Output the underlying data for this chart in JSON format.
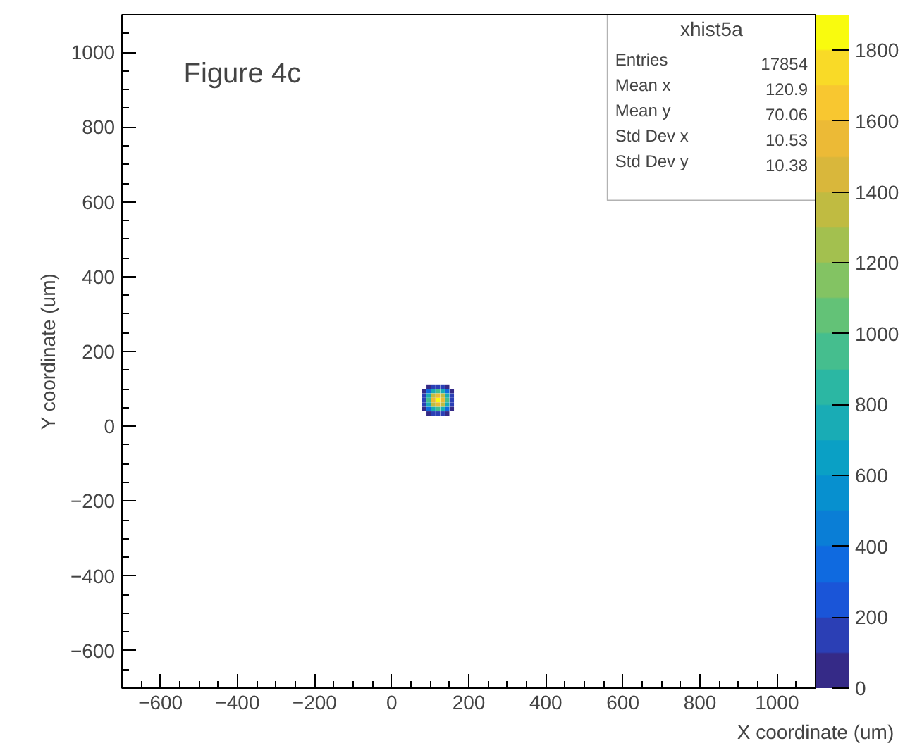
{
  "chart_data": {
    "type": "scatter",
    "marker": "square",
    "xlabel": "X coordinate (um)",
    "ylabel": "Y coordinate (um)",
    "annotations": [
      "Figure 4c",
      "xhist5a",
      "Entries 17854",
      "Mean x 120.9",
      "Mean y 70.06",
      "Std Dev x 10.53",
      "Std Dev y 10.38"
    ],
    "x": [
      96,
      108,
      120,
      132,
      144,
      84,
      96,
      108,
      120,
      132,
      144,
      156,
      84,
      96,
      108,
      120,
      132,
      144,
      156,
      84,
      96,
      108,
      120,
      132,
      144,
      156,
      84,
      96,
      108,
      120,
      132,
      144,
      156,
      84,
      96,
      108,
      120,
      132,
      144,
      156,
      96,
      108,
      120,
      132,
      144
    ],
    "values": [
      106,
      106,
      106,
      106,
      106,
      94,
      94,
      94,
      94,
      94,
      94,
      94,
      82,
      82,
      82,
      82,
      82,
      82,
      82,
      70,
      70,
      70,
      70,
      70,
      70,
      70,
      58,
      58,
      58,
      58,
      58,
      58,
      58,
      46,
      46,
      46,
      46,
      46,
      46,
      46,
      34,
      34,
      34,
      34,
      34
    ],
    "cvalues": [
      60,
      120,
      150,
      120,
      60,
      60,
      300,
      700,
      900,
      700,
      300,
      60,
      120,
      700,
      1300,
      1500,
      1300,
      700,
      120,
      150,
      900,
      1500,
      1800,
      1500,
      900,
      150,
      120,
      700,
      1300,
      1500,
      1300,
      700,
      120,
      60,
      300,
      700,
      900,
      700,
      300,
      60,
      60,
      120,
      150,
      120,
      60
    ],
    "xlim": [
      -700,
      1100
    ],
    "ylim": [
      -700,
      1100
    ],
    "xticks": [
      -600,
      -400,
      -200,
      0,
      200,
      400,
      600,
      800,
      1000
    ],
    "yticks": [
      -600,
      -400,
      -200,
      0,
      200,
      400,
      600,
      800,
      1000
    ],
    "clim": [
      0,
      1900
    ],
    "cticks": [
      0,
      200,
      400,
      600,
      800,
      1000,
      1200,
      1400,
      1600,
      1800
    ]
  }
}
